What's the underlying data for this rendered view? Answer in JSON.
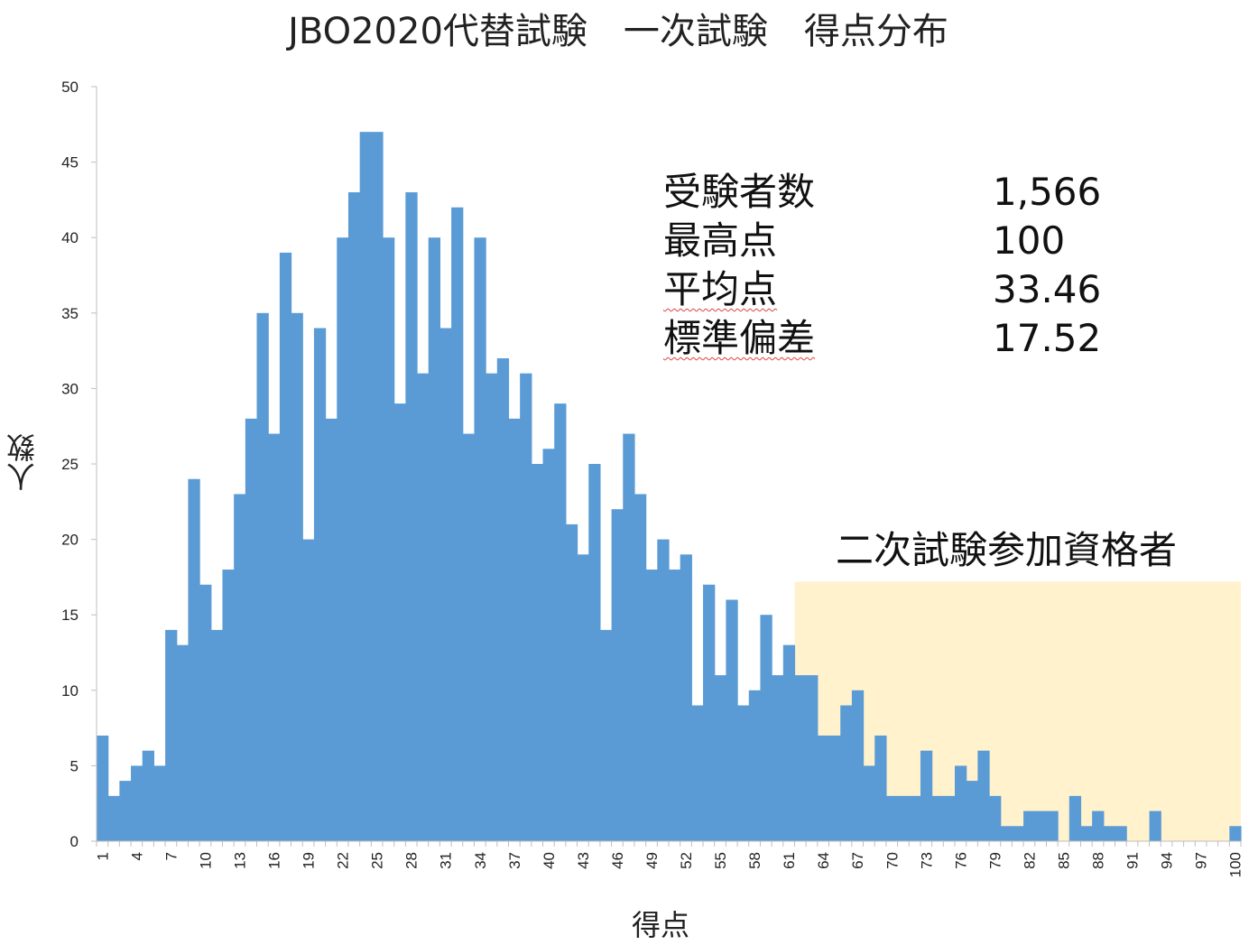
{
  "chart_data": {
    "type": "bar",
    "title": "JBO2020代替試験　一次試験　得点分布",
    "xlabel": "得点",
    "ylabel": "人数",
    "ylim": [
      0,
      50
    ],
    "yticks": [
      0,
      5,
      10,
      15,
      20,
      25,
      30,
      35,
      40,
      45,
      50
    ],
    "x_tick_labels": [
      "1",
      "4",
      "7",
      "10",
      "13",
      "16",
      "19",
      "22",
      "25",
      "28",
      "31",
      "34",
      "37",
      "40",
      "43",
      "46",
      "49",
      "52",
      "55",
      "58",
      "61",
      "64",
      "67",
      "70",
      "73",
      "76",
      "79",
      "82",
      "85",
      "88",
      "91",
      "94",
      "97",
      "100"
    ],
    "categories": [
      1,
      2,
      3,
      4,
      5,
      6,
      7,
      8,
      9,
      10,
      11,
      12,
      13,
      14,
      15,
      16,
      17,
      18,
      19,
      20,
      21,
      22,
      23,
      24,
      25,
      26,
      27,
      28,
      29,
      30,
      31,
      32,
      33,
      34,
      35,
      36,
      37,
      38,
      39,
      40,
      41,
      42,
      43,
      44,
      45,
      46,
      47,
      48,
      49,
      50,
      51,
      52,
      53,
      54,
      55,
      56,
      57,
      58,
      59,
      60,
      61,
      62,
      63,
      64,
      65,
      66,
      67,
      68,
      69,
      70,
      71,
      72,
      73,
      74,
      75,
      76,
      77,
      78,
      79,
      80,
      81,
      82,
      83,
      84,
      85,
      86,
      87,
      88,
      89,
      90,
      91,
      92,
      93,
      94,
      95,
      96,
      97,
      98,
      99,
      100
    ],
    "values": [
      7,
      3,
      4,
      5,
      6,
      5,
      14,
      13,
      24,
      17,
      14,
      18,
      23,
      28,
      35,
      27,
      39,
      35,
      20,
      34,
      28,
      40,
      43,
      47,
      47,
      40,
      29,
      43,
      31,
      40,
      34,
      42,
      27,
      40,
      31,
      32,
      28,
      31,
      25,
      26,
      29,
      21,
      19,
      25,
      14,
      22,
      27,
      23,
      18,
      20,
      18,
      19,
      9,
      17,
      11,
      16,
      9,
      10,
      15,
      11,
      13,
      11,
      11,
      7,
      7,
      9,
      10,
      5,
      7,
      3,
      3,
      3,
      6,
      3,
      3,
      5,
      4,
      6,
      3,
      1,
      1,
      2,
      2,
      2,
      0,
      3,
      1,
      2,
      1,
      1,
      0,
      0,
      2,
      0,
      0,
      0,
      0,
      0,
      0,
      1
    ],
    "bar_color": "#5b9bd5",
    "highlight": {
      "from_score": 62,
      "to_score": 100,
      "value": 17.2,
      "color": "#fff2cc",
      "label": "二次試験参加資格者"
    },
    "stats": [
      {
        "label": "受験者数",
        "value": "1,566",
        "squiggle": false
      },
      {
        "label": "最高点",
        "value": "100",
        "squiggle": false
      },
      {
        "label": "平均点",
        "value": "33.46",
        "squiggle": true
      },
      {
        "label": "標準偏差",
        "value": "17.52",
        "squiggle": true
      }
    ]
  }
}
